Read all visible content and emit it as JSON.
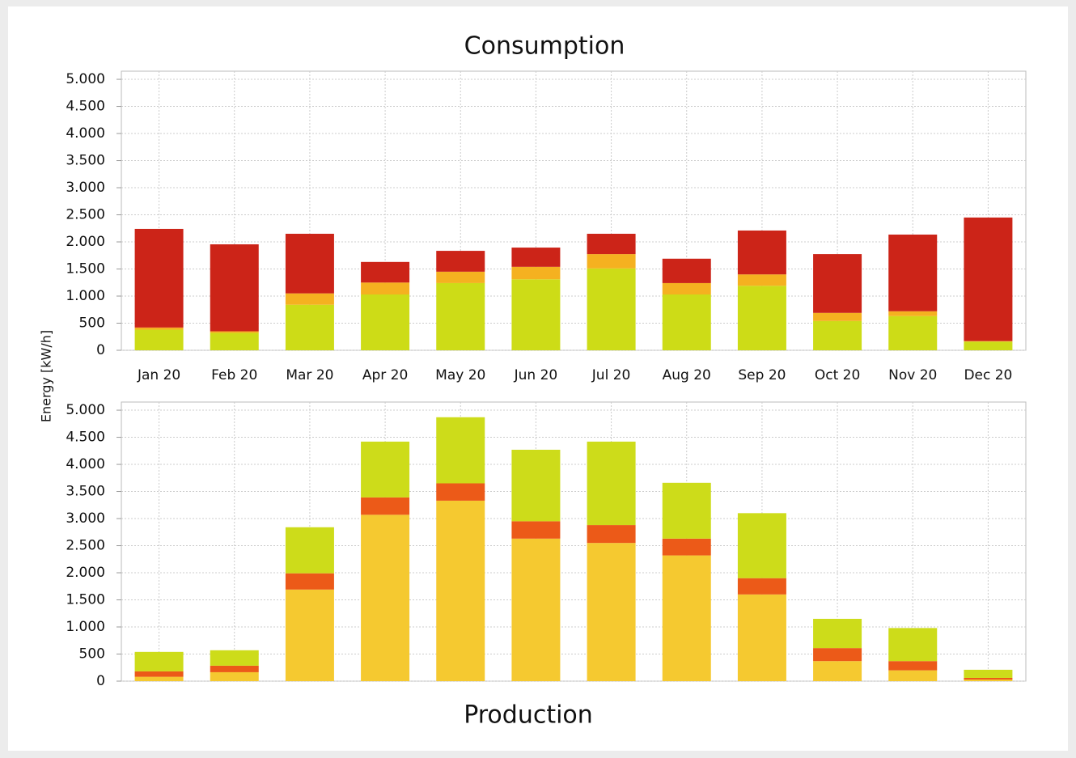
{
  "chart_data": [
    {
      "type": "stacked_bar",
      "title": "Consumption",
      "ylabel": "Energy [kW/h]",
      "categories": [
        "Jan 20",
        "Feb 20",
        "Mar 20",
        "Apr 20",
        "May 20",
        "Jun 20",
        "Jul 20",
        "Aug 20",
        "Sep 20",
        "Oct 20",
        "Nov 20",
        "Dec 20"
      ],
      "series": [
        {
          "color": "#cddc17",
          "values": [
            380,
            320,
            840,
            1030,
            1240,
            1310,
            1510,
            1030,
            1190,
            540,
            630,
            160
          ]
        },
        {
          "color": "#f5b120",
          "values": [
            40,
            30,
            210,
            220,
            210,
            230,
            265,
            210,
            210,
            150,
            90,
            10
          ]
        },
        {
          "color": "#cc2418",
          "values": [
            1820,
            1605,
            1100,
            380,
            385,
            355,
            375,
            450,
            810,
            1085,
            1415,
            2280
          ]
        }
      ],
      "ylim": [
        0,
        5150
      ],
      "yticks": [
        0,
        500,
        {
          "value": 1000,
          "label": "1.000"
        },
        {
          "value": 1500,
          "label": "1.500"
        },
        {
          "value": 2000,
          "label": "2.000"
        },
        {
          "value": 2500,
          "label": "2.500"
        },
        {
          "value": 3000,
          "label": "3.000"
        },
        {
          "value": 3500,
          "label": "3.500"
        },
        {
          "value": 4000,
          "label": "4.000"
        },
        {
          "value": 4500,
          "label": "4.500"
        },
        {
          "value": 5000,
          "label": "5.000"
        }
      ],
      "grid": true
    },
    {
      "type": "stacked_bar",
      "title": "Production",
      "series": [
        {
          "color": "#f5c930",
          "values": [
            80,
            165,
            1690,
            3070,
            3330,
            2630,
            2550,
            2320,
            1600,
            370,
            200,
            30
          ]
        },
        {
          "color": "#ec5a18",
          "values": [
            100,
            120,
            300,
            320,
            320,
            320,
            330,
            310,
            300,
            240,
            170,
            30
          ]
        },
        {
          "color": "#cddc1a",
          "values": [
            360,
            285,
            850,
            1030,
            1220,
            1320,
            1540,
            1030,
            1200,
            540,
            610,
            150
          ]
        }
      ],
      "ylim": [
        0,
        5150
      ],
      "yticks": [
        0,
        500,
        {
          "value": 1000,
          "label": "1.000"
        },
        {
          "value": 1500,
          "label": "1.500"
        },
        {
          "value": 2000,
          "label": "2.000"
        },
        {
          "value": 2500,
          "label": "2.500"
        },
        {
          "value": 3000,
          "label": "3.000"
        },
        {
          "value": 3500,
          "label": "3.500"
        },
        {
          "value": 4000,
          "label": "4.000"
        },
        {
          "value": 4500,
          "label": "4.500"
        },
        {
          "value": 5000,
          "label": "5.000"
        }
      ],
      "grid": true
    }
  ]
}
